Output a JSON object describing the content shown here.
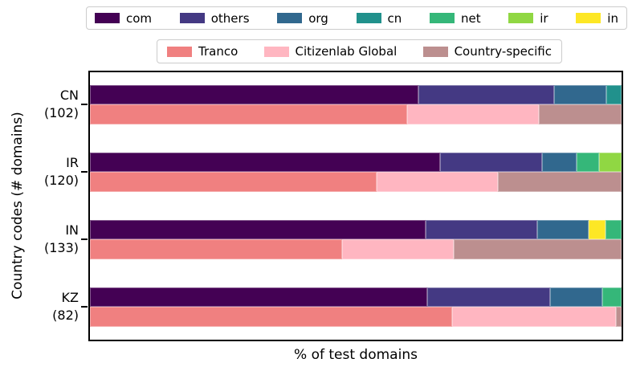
{
  "legends": {
    "tld": [
      {
        "label": "com",
        "color": "#440154"
      },
      {
        "label": "others",
        "color": "#443983"
      },
      {
        "label": "org",
        "color": "#31688e"
      },
      {
        "label": "cn",
        "color": "#21918c"
      },
      {
        "label": "net",
        "color": "#35b779"
      },
      {
        "label": "ir",
        "color": "#90d743"
      },
      {
        "label": "in",
        "color": "#fde725"
      }
    ],
    "source": [
      {
        "label": "Tranco",
        "color": "#f08080"
      },
      {
        "label": "Citizenlab Global",
        "color": "#ffb6c1"
      },
      {
        "label": "Country-specific",
        "color": "#bc8f8f"
      }
    ]
  },
  "chart_data": {
    "type": "bar",
    "orientation": "horizontal",
    "stacked": true,
    "grid": false,
    "title": "",
    "xlabel": "% of test domains",
    "ylabel": "Country codes (# domains)",
    "xlim": [
      0,
      100
    ],
    "legend_positions": [
      "top-outside-row1-tlds",
      "top-outside-row2-sources"
    ],
    "bars_per_group": [
      "tld_segments",
      "source_segments"
    ],
    "groups": [
      {
        "country": "CN",
        "num_domains": 102,
        "tick_label": [
          "CN",
          "(102)"
        ],
        "tld_segments": [
          {
            "name": "com",
            "pct": 61.8
          },
          {
            "name": "others",
            "pct": 25.5
          },
          {
            "name": "org",
            "pct": 9.8
          },
          {
            "name": "cn",
            "pct": 2.9
          }
        ],
        "source_segments": [
          {
            "name": "Tranco",
            "pct": 59.6
          },
          {
            "name": "Citizenlab Global",
            "pct": 24.8
          },
          {
            "name": "Country-specific",
            "pct": 15.6
          }
        ]
      },
      {
        "country": "IR",
        "num_domains": 120,
        "tick_label": [
          "IR",
          "(120)"
        ],
        "tld_segments": [
          {
            "name": "com",
            "pct": 65.8
          },
          {
            "name": "others",
            "pct": 19.2
          },
          {
            "name": "org",
            "pct": 6.6
          },
          {
            "name": "net",
            "pct": 4.2
          },
          {
            "name": "ir",
            "pct": 4.2
          }
        ],
        "source_segments": [
          {
            "name": "Tranco",
            "pct": 53.9
          },
          {
            "name": "Citizenlab Global",
            "pct": 22.8
          },
          {
            "name": "Country-specific",
            "pct": 23.3
          }
        ]
      },
      {
        "country": "IN",
        "num_domains": 133,
        "tick_label": [
          "IN",
          "(133)"
        ],
        "tld_segments": [
          {
            "name": "com",
            "pct": 63.2
          },
          {
            "name": "others",
            "pct": 21.0
          },
          {
            "name": "org",
            "pct": 9.6
          },
          {
            "name": "in",
            "pct": 3.2
          },
          {
            "name": "net",
            "pct": 3.0
          }
        ],
        "source_segments": [
          {
            "name": "Tranco",
            "pct": 47.4
          },
          {
            "name": "Citizenlab Global",
            "pct": 21.0
          },
          {
            "name": "Country-specific",
            "pct": 31.6
          }
        ]
      },
      {
        "country": "KZ",
        "num_domains": 82,
        "tick_label": [
          "KZ",
          "(82)"
        ],
        "tld_segments": [
          {
            "name": "com",
            "pct": 63.4
          },
          {
            "name": "others",
            "pct": 23.1
          },
          {
            "name": "org",
            "pct": 9.9
          },
          {
            "name": "net",
            "pct": 3.6
          }
        ],
        "source_segments": [
          {
            "name": "Tranco",
            "pct": 68.2
          },
          {
            "name": "Citizenlab Global",
            "pct": 30.7
          },
          {
            "name": "Country-specific",
            "pct": 1.1
          }
        ]
      }
    ]
  }
}
